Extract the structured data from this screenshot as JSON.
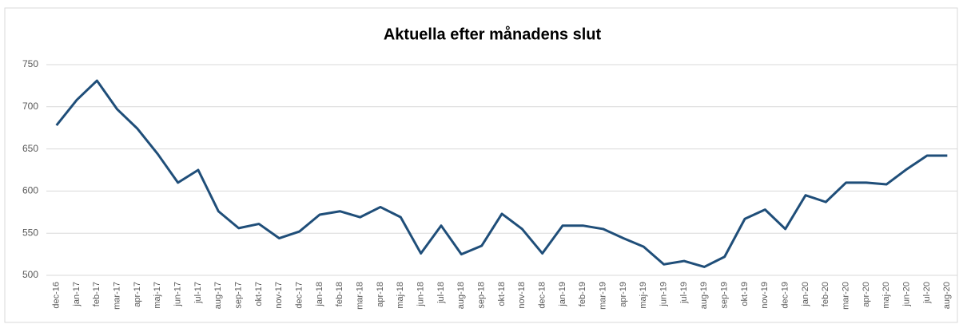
{
  "chart_data": {
    "type": "line",
    "title": "Aktuella efter månadens slut",
    "categories": [
      "dec-16",
      "jan-17",
      "feb-17",
      "mar-17",
      "apr-17",
      "maj-17",
      "jun-17",
      "jul-17",
      "aug-17",
      "sep-17",
      "okt-17",
      "nov-17",
      "dec-17",
      "jan-18",
      "feb-18",
      "mar-18",
      "apr-18",
      "maj-18",
      "jun-18",
      "jul-18",
      "aug-18",
      "sep-18",
      "okt-18",
      "nov-18",
      "dec-18",
      "jan-19",
      "feb-19",
      "mar-19",
      "apr-19",
      "maj-19",
      "jun-19",
      "jul-19",
      "aug-19",
      "sep-19",
      "okt-19",
      "nov-19",
      "dec-19",
      "jan-20",
      "feb-20",
      "mar-20",
      "apr-20",
      "maj-20",
      "jun-20",
      "jul-20",
      "aug-20"
    ],
    "values": [
      678,
      708,
      731,
      697,
      674,
      644,
      610,
      625,
      576,
      556,
      561,
      544,
      552,
      572,
      576,
      569,
      581,
      569,
      526,
      559,
      525,
      535,
      573,
      555,
      526,
      559,
      559,
      555,
      544,
      534,
      513,
      517,
      510,
      522,
      567,
      578,
      555,
      595,
      587,
      610,
      610,
      608,
      626,
      642,
      642
    ],
    "color": "#1f4e79",
    "ylim": [
      500,
      750
    ],
    "yticks": [
      500,
      550,
      600,
      650,
      700,
      750
    ],
    "grid": true
  }
}
